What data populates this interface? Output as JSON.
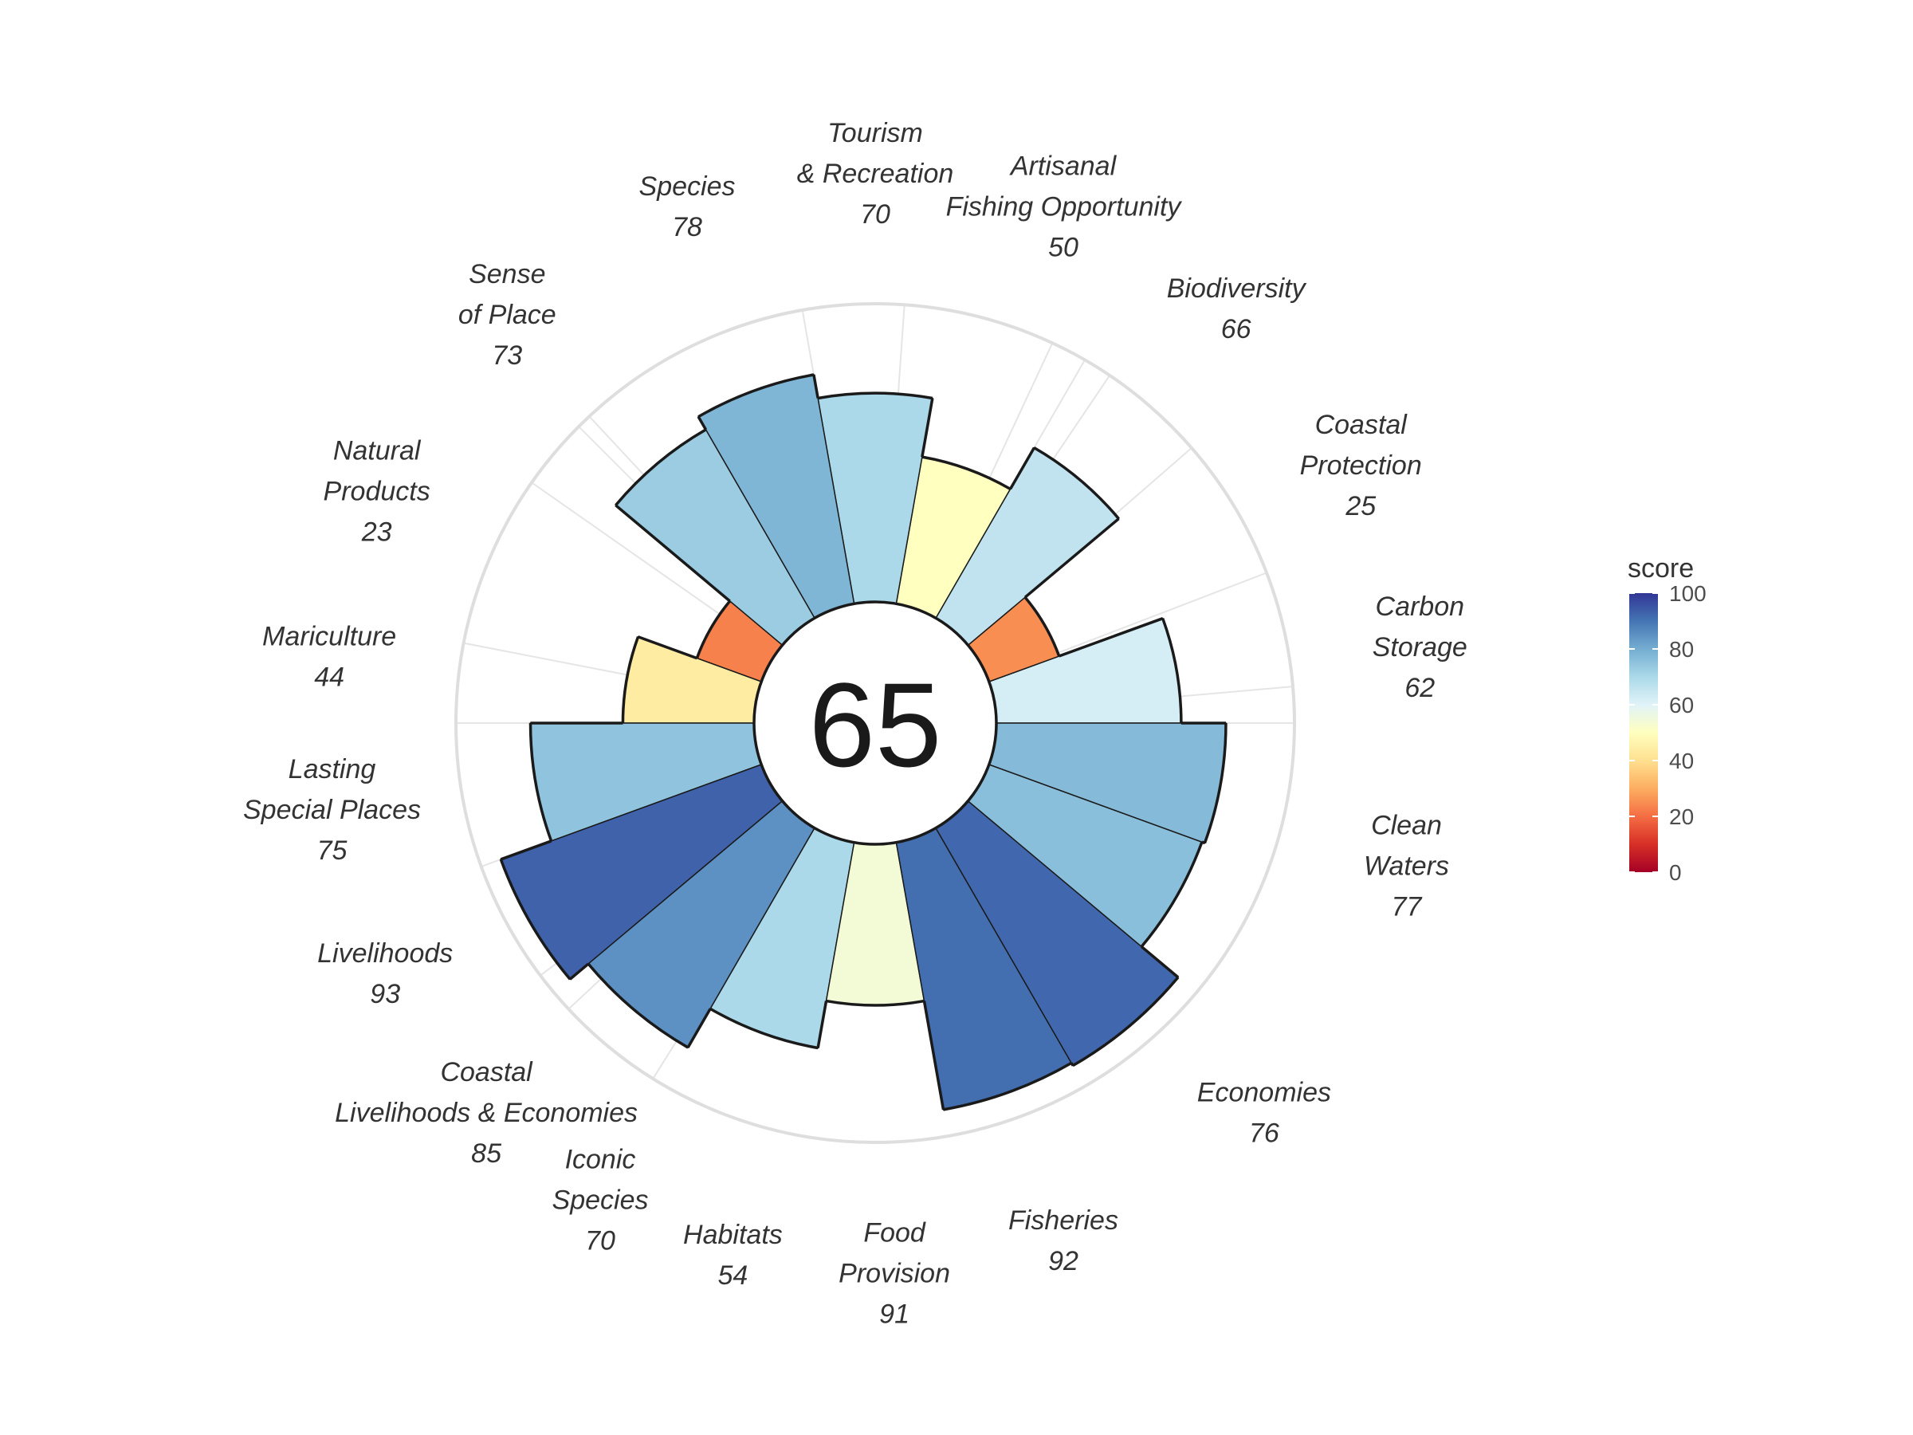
{
  "chart_data": {
    "type": "polar-bar",
    "center_score": "65",
    "rlim": [
      0,
      100
    ],
    "legend": {
      "title": "score",
      "ticks": [
        0,
        20,
        40,
        60,
        80,
        100
      ],
      "placement": "right"
    },
    "colorscale": [
      "#a50026",
      "#d73027",
      "#f46d43",
      "#fdae61",
      "#fee090",
      "#ffffbf",
      "#e0f3f8",
      "#abd9e9",
      "#74add1",
      "#4575b4",
      "#313695"
    ],
    "goals": [
      {
        "label": [
          "Carbon",
          "Storage"
        ],
        "score": "62"
      },
      {
        "label": [
          "Coastal",
          "Protection"
        ],
        "score": "25"
      },
      {
        "label": [
          "Biodiversity"
        ],
        "score": "66"
      },
      {
        "label": [
          "Artisanal",
          "Fishing Opportunity"
        ],
        "score": "50"
      },
      {
        "label": [
          "Tourism",
          "& Recreation"
        ],
        "score": "70"
      },
      {
        "label": [
          "Species"
        ],
        "score": "78"
      },
      {
        "label": [
          "Sense",
          "of Place"
        ],
        "score": "73"
      },
      {
        "label": [
          "Natural",
          "Products"
        ],
        "score": "23"
      },
      {
        "label": [
          "Mariculture"
        ],
        "score": "44"
      },
      {
        "label": [
          "Lasting",
          "Special Places"
        ],
        "score": "75"
      },
      {
        "label": [
          "Livelihoods"
        ],
        "score": "93"
      },
      {
        "label": [
          "Coastal",
          "Livelihoods & Economies"
        ],
        "score": "85"
      },
      {
        "label": [
          "Iconic",
          "Species"
        ],
        "score": "70"
      },
      {
        "label": [
          "Habitats"
        ],
        "score": "54"
      },
      {
        "label": [
          "Food",
          "Provision"
        ],
        "score": "91"
      },
      {
        "label": [
          "Fisheries"
        ],
        "score": "92"
      },
      {
        "label": [
          "Economies"
        ],
        "score": "76"
      },
      {
        "label": [
          "Clean",
          "Waters"
        ],
        "score": "77"
      }
    ],
    "bars": [
      {
        "name": "Carbon Storage",
        "value": 62
      },
      {
        "name": "Coastal Protection",
        "value": 25
      },
      {
        "name": "Biodiversity",
        "value": 66
      },
      {
        "name": "Artisanal Fishing Opportunity",
        "value": 50
      },
      {
        "name": "Tourism & Recreation",
        "value": 70
      },
      {
        "name": "Species",
        "value": 78
      },
      {
        "name": "Sense of Place",
        "value": 73
      },
      {
        "name": "Natural Products",
        "value": 23
      },
      {
        "name": "Mariculture",
        "value": 44
      },
      {
        "name": "Lasting Special Places",
        "value": 75
      },
      {
        "name": "Livelihoods",
        "value": 93
      },
      {
        "name": "Coastal Livelihoods & Economies",
        "value": 85
      },
      {
        "name": "Iconic Species",
        "value": 70
      },
      {
        "name": "Habitats",
        "value": 54
      },
      {
        "name": "Food Provision",
        "value": 91
      },
      {
        "name": "Fisheries",
        "value": 92
      },
      {
        "name": "Economies",
        "value": 76
      },
      {
        "name": "Clean Waters",
        "value": 77
      }
    ]
  }
}
